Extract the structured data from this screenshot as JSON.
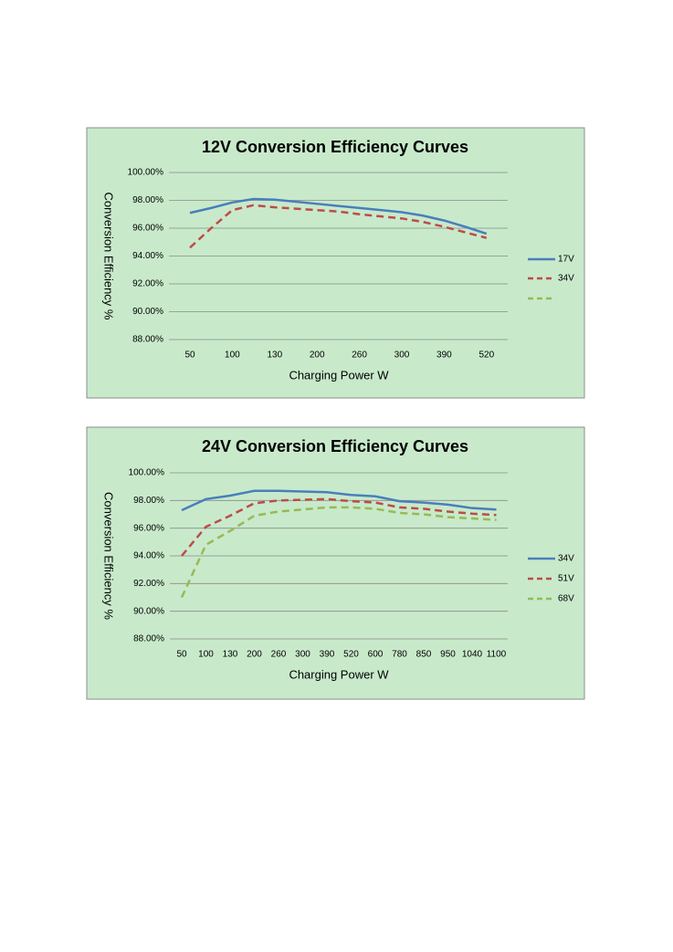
{
  "chart_data": [
    {
      "type": "line",
      "title": "12V Conversion Efficiency Curves",
      "x_label": "Charging Power W",
      "y_label": "Conversion Efficiency %",
      "categories": [
        "50",
        null,
        "100",
        null,
        "130",
        null,
        "200",
        null,
        "260",
        null,
        "300",
        null,
        "390",
        null,
        "520"
      ],
      "series": [
        {
          "name": "17V",
          "color": "#4a7ebb",
          "dash": false,
          "values": [
            97.1,
            97.45,
            97.85,
            98.1,
            98.05,
            97.9,
            97.75,
            97.6,
            97.45,
            97.3,
            97.15,
            96.9,
            96.55,
            96.1,
            95.6
          ]
        },
        {
          "name": "34V",
          "color": "#be4b48",
          "dash": true,
          "values": [
            94.6,
            96.0,
            97.3,
            97.65,
            97.5,
            97.4,
            97.3,
            97.2,
            97.0,
            96.85,
            96.7,
            96.45,
            96.1,
            95.7,
            95.3
          ]
        }
      ],
      "ylim": [
        88,
        100
      ],
      "yticks": [
        {
          "value": 88,
          "label": "88.00%"
        },
        {
          "value": 90,
          "label": "90.00%"
        },
        {
          "value": 92,
          "label": "92.00%"
        },
        {
          "value": 94,
          "label": "94.00%"
        },
        {
          "value": 96,
          "label": "96.00%"
        },
        {
          "value": 98,
          "label": "98.00%"
        },
        {
          "value": 100,
          "label": "100.00%"
        }
      ],
      "grid": true,
      "legend": "right"
    },
    {
      "type": "line",
      "title": "24V Conversion Efficiency Curves",
      "x_label": "Charging Power W",
      "y_label": "Conversion Efficiency %",
      "categories": [
        "50",
        "100",
        "130",
        "200",
        "260",
        "300",
        "390",
        "520",
        "600",
        "780",
        "850",
        "950",
        "1040",
        "1100"
      ],
      "series": [
        {
          "name": "34V",
          "color": "#4a7ebb",
          "dash": false,
          "values": [
            97.3,
            98.1,
            98.35,
            98.7,
            98.7,
            98.65,
            98.6,
            98.4,
            98.3,
            97.95,
            97.85,
            97.7,
            97.45,
            97.35
          ]
        },
        {
          "name": "51V",
          "color": "#be4b48",
          "dash": true,
          "values": [
            94.0,
            96.1,
            96.9,
            97.8,
            98.0,
            98.05,
            98.1,
            97.95,
            97.85,
            97.5,
            97.4,
            97.2,
            97.05,
            96.95
          ]
        },
        {
          "name": "68V",
          "color": "#98b954",
          "dash": true,
          "values": [
            91.0,
            94.8,
            95.8,
            96.9,
            97.2,
            97.35,
            97.5,
            97.5,
            97.4,
            97.1,
            97.0,
            96.8,
            96.7,
            96.6
          ]
        }
      ],
      "ylim": [
        88,
        100
      ],
      "yticks": [
        {
          "value": 88,
          "label": "88.00%"
        },
        {
          "value": 90,
          "label": "90.00%"
        },
        {
          "value": 92,
          "label": "92.00%"
        },
        {
          "value": 94,
          "label": "94.00%"
        },
        {
          "value": 96,
          "label": "96.00%"
        },
        {
          "value": 98,
          "label": "98.00%"
        },
        {
          "value": 100,
          "label": "100.00%"
        }
      ],
      "grid": true,
      "legend": "right"
    }
  ]
}
